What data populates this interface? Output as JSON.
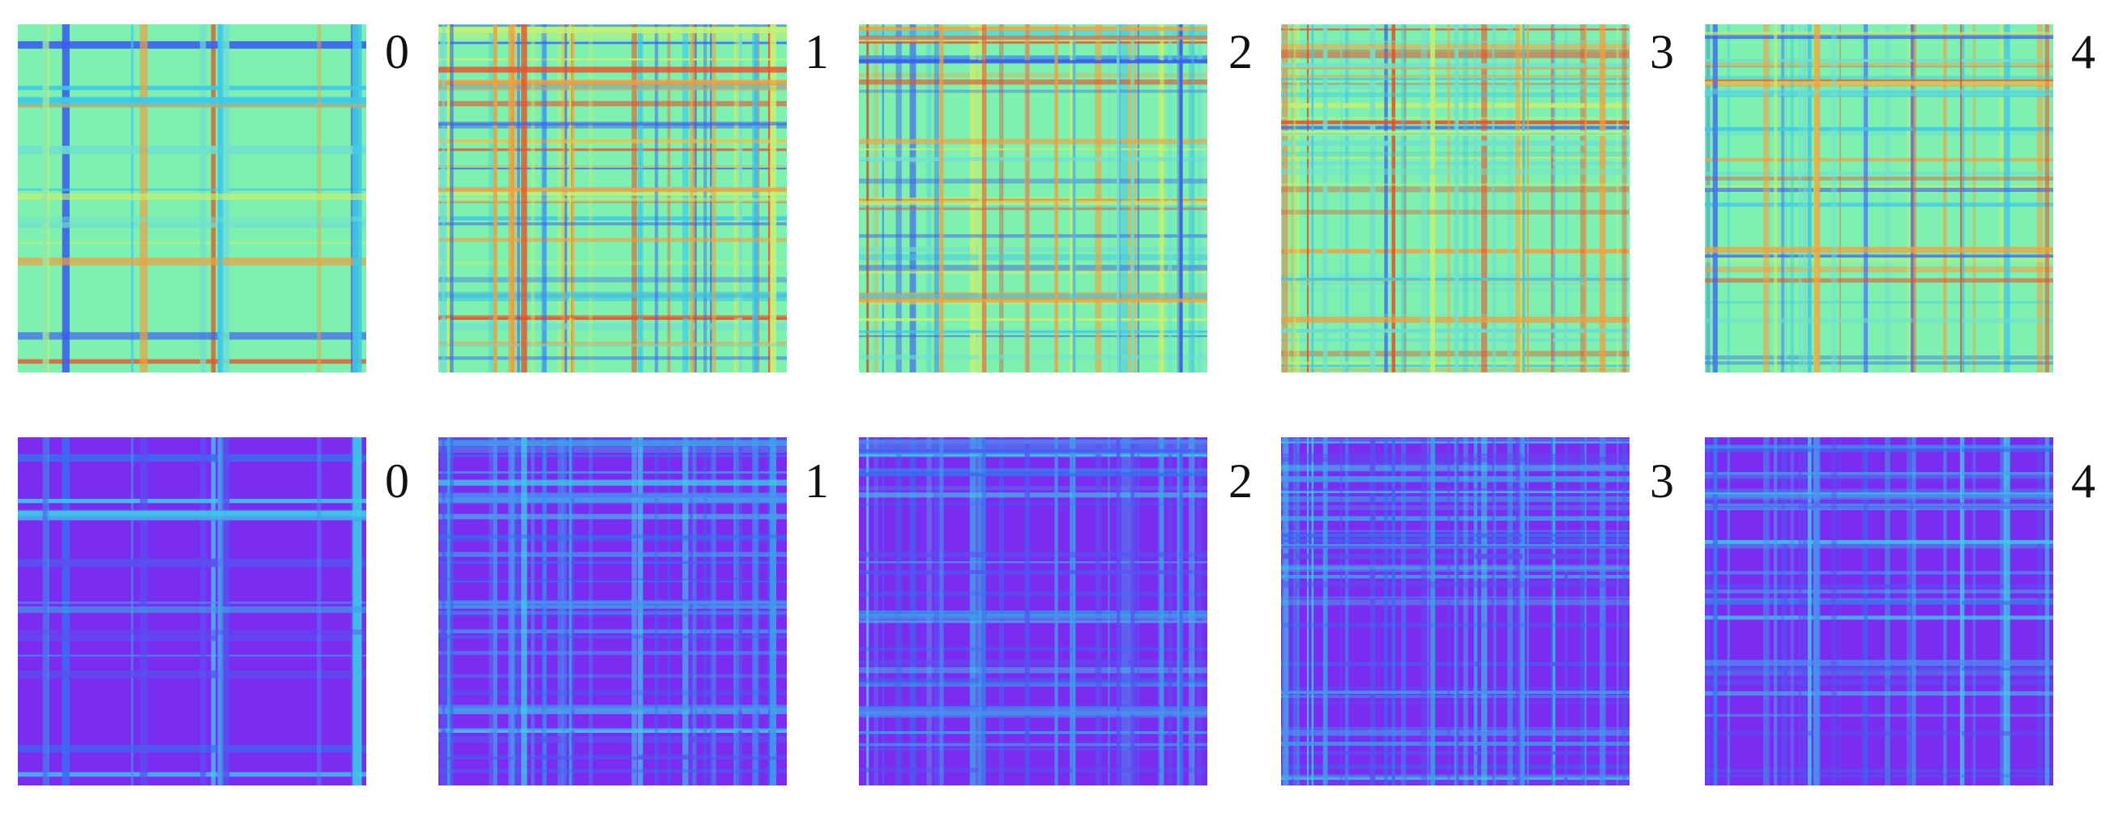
{
  "rows": [
    {
      "panels": [
        {
          "label": "0"
        },
        {
          "label": "1"
        },
        {
          "label": "2"
        },
        {
          "label": "3"
        },
        {
          "label": "4"
        }
      ]
    },
    {
      "panels": [
        {
          "label": "0"
        },
        {
          "label": "1"
        },
        {
          "label": "2"
        },
        {
          "label": "3"
        },
        {
          "label": "4"
        }
      ]
    }
  ]
}
